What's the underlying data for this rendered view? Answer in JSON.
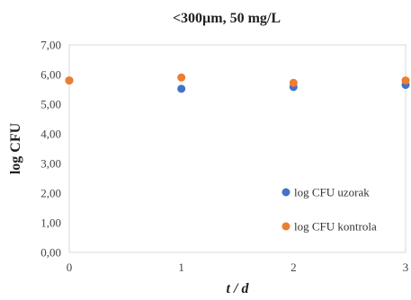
{
  "chart_data": {
    "type": "scatter",
    "title": "<300µm, 50 mg/L",
    "xlabel": "t / d",
    "ylabel": "log CFU",
    "xlim": [
      0,
      3
    ],
    "ylim": [
      0,
      7
    ],
    "x_ticks": [
      "0",
      "1",
      "2",
      "3"
    ],
    "y_ticks": [
      "0,00",
      "1,00",
      "2,00",
      "3,00",
      "4,00",
      "5,00",
      "6,00",
      "7,00"
    ],
    "grid": false,
    "legend_position": "bottom-right",
    "series": [
      {
        "name": "log CFU uzorak",
        "color": "#4472C4",
        "x": [
          0,
          1,
          2,
          3
        ],
        "y": [
          5.8,
          5.52,
          5.58,
          5.65
        ]
      },
      {
        "name": "log CFU kontrola",
        "color": "#ED7D31",
        "x": [
          0,
          1,
          2,
          3
        ],
        "y": [
          5.8,
          5.9,
          5.72,
          5.8
        ]
      }
    ]
  }
}
